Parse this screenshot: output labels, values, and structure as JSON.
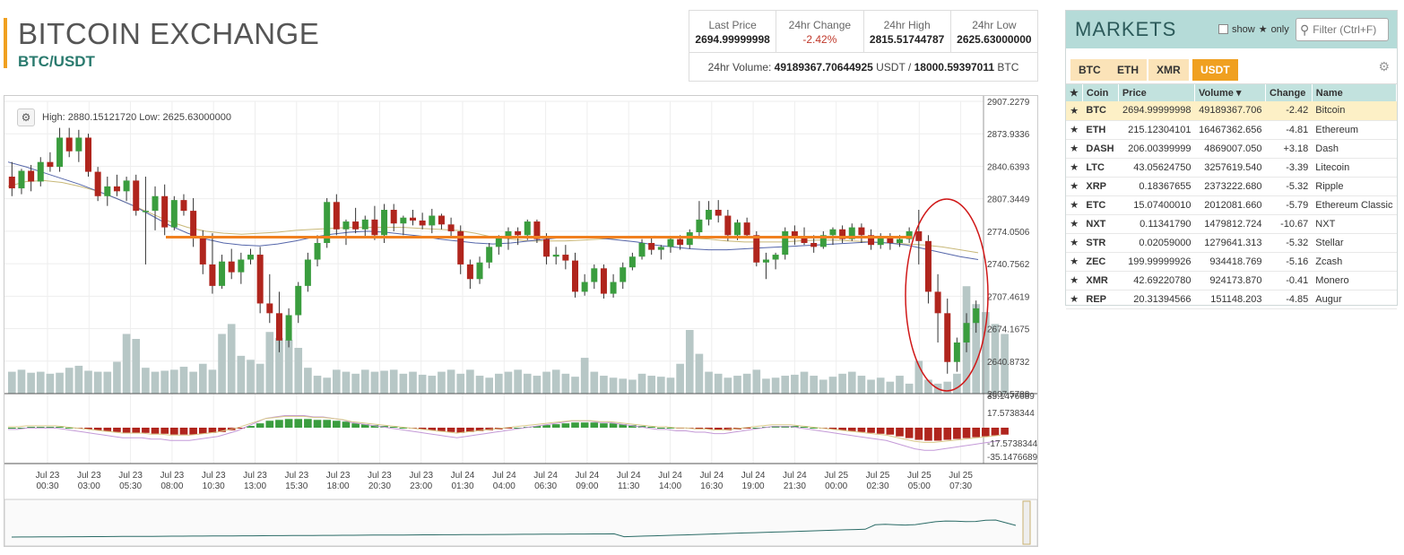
{
  "header": {
    "title": "BITCOIN EXCHANGE",
    "pair": "BTC/USDT"
  },
  "stats": {
    "items": [
      {
        "label": "Last Price",
        "value": "2694.99999998"
      },
      {
        "label": "24hr Change",
        "value": "-2.42%"
      },
      {
        "label": "24hr High",
        "value": "2815.51744787"
      },
      {
        "label": "24hr Low",
        "value": "2625.63000000"
      }
    ],
    "volume_prefix": "24hr Volume:",
    "volume_usdt": "49189367.70644925",
    "volume_sep": "USDT /",
    "volume_btc": "18000.59397011",
    "volume_suffix": "BTC"
  },
  "chart": {
    "high_low_label": "High: 2880.15121720  Low: 2625.63000000",
    "gear_icon": "gear-icon"
  },
  "chart_data": {
    "type": "candlestick",
    "price_ticks": [
      "2907.2279",
      "2873.9336",
      "2840.6393",
      "2807.3449",
      "2774.0506",
      "2740.7562",
      "2707.4619",
      "2674.1675",
      "2640.8732",
      "2607.5788"
    ],
    "indicator_ticks": [
      "35.1476689",
      "17.5738344",
      "-17.5738344",
      "-35.1476689"
    ],
    "x_ticks": [
      [
        "Jul 23",
        "00:30"
      ],
      [
        "Jul 23",
        "03:00"
      ],
      [
        "Jul 23",
        "05:30"
      ],
      [
        "Jul 23",
        "08:00"
      ],
      [
        "Jul 23",
        "10:30"
      ],
      [
        "Jul 23",
        "13:00"
      ],
      [
        "Jul 23",
        "15:30"
      ],
      [
        "Jul 23",
        "18:00"
      ],
      [
        "Jul 23",
        "20:30"
      ],
      [
        "Jul 23",
        "23:00"
      ],
      [
        "Jul 24",
        "01:30"
      ],
      [
        "Jul 24",
        "04:00"
      ],
      [
        "Jul 24",
        "06:30"
      ],
      [
        "Jul 24",
        "09:00"
      ],
      [
        "Jul 24",
        "11:30"
      ],
      [
        "Jul 24",
        "14:00"
      ],
      [
        "Jul 24",
        "16:30"
      ],
      [
        "Jul 24",
        "19:00"
      ],
      [
        "Jul 24",
        "21:30"
      ],
      [
        "Jul 25",
        "00:00"
      ],
      [
        "Jul 25",
        "02:30"
      ],
      [
        "Jul 25",
        "05:00"
      ],
      [
        "Jul 25",
        "07:30"
      ]
    ],
    "ylim": [
      2607.5788,
      2907.2279
    ],
    "candles": [
      [
        2830,
        2845,
        2810,
        2818
      ],
      [
        2818,
        2838,
        2812,
        2836
      ],
      [
        2836,
        2842,
        2815,
        2825
      ],
      [
        2825,
        2850,
        2820,
        2845
      ],
      [
        2845,
        2855,
        2835,
        2840
      ],
      [
        2840,
        2880,
        2835,
        2870
      ],
      [
        2870,
        2880,
        2850,
        2856
      ],
      [
        2856,
        2878,
        2845,
        2870
      ],
      [
        2870,
        2874,
        2830,
        2835
      ],
      [
        2835,
        2840,
        2805,
        2810
      ],
      [
        2810,
        2830,
        2800,
        2820
      ],
      [
        2820,
        2832,
        2810,
        2815
      ],
      [
        2815,
        2830,
        2805,
        2826
      ],
      [
        2826,
        2832,
        2790,
        2795
      ],
      [
        2795,
        2830,
        2740,
        2795
      ],
      [
        2795,
        2820,
        2775,
        2810
      ],
      [
        2810,
        2822,
        2770,
        2778
      ],
      [
        2778,
        2810,
        2775,
        2806
      ],
      [
        2806,
        2812,
        2790,
        2795
      ],
      [
        2795,
        2808,
        2758,
        2768
      ],
      [
        2768,
        2775,
        2730,
        2740
      ],
      [
        2740,
        2772,
        2710,
        2718
      ],
      [
        2718,
        2750,
        2715,
        2743
      ],
      [
        2743,
        2756,
        2725,
        2732
      ],
      [
        2732,
        2752,
        2720,
        2745
      ],
      [
        2745,
        2756,
        2740,
        2750
      ],
      [
        2750,
        2758,
        2690,
        2700
      ],
      [
        2700,
        2730,
        2680,
        2690
      ],
      [
        2690,
        2712,
        2650,
        2662
      ],
      [
        2662,
        2695,
        2655,
        2688
      ],
      [
        2688,
        2722,
        2680,
        2718
      ],
      [
        2718,
        2752,
        2712,
        2745
      ],
      [
        2745,
        2770,
        2738,
        2762
      ],
      [
        2762,
        2808,
        2757,
        2804
      ],
      [
        2804,
        2812,
        2770,
        2776
      ],
      [
        2776,
        2786,
        2760,
        2784
      ],
      [
        2784,
        2798,
        2772,
        2776
      ],
      [
        2776,
        2790,
        2768,
        2786
      ],
      [
        2786,
        2800,
        2765,
        2770
      ],
      [
        2770,
        2802,
        2762,
        2796
      ],
      [
        2796,
        2802,
        2774,
        2782
      ],
      [
        2782,
        2790,
        2770,
        2788
      ],
      [
        2788,
        2796,
        2780,
        2785
      ],
      [
        2785,
        2793,
        2776,
        2780
      ],
      [
        2780,
        2797,
        2772,
        2790
      ],
      [
        2790,
        2792,
        2776,
        2781
      ],
      [
        2781,
        2788,
        2768,
        2774
      ],
      [
        2774,
        2780,
        2730,
        2740
      ],
      [
        2740,
        2745,
        2715,
        2725
      ],
      [
        2725,
        2748,
        2720,
        2742
      ],
      [
        2742,
        2762,
        2736,
        2758
      ],
      [
        2758,
        2770,
        2750,
        2768
      ],
      [
        2768,
        2778,
        2755,
        2774
      ],
      [
        2774,
        2778,
        2760,
        2770
      ],
      [
        2770,
        2786,
        2765,
        2784
      ],
      [
        2784,
        2786,
        2762,
        2766
      ],
      [
        2766,
        2772,
        2740,
        2748
      ],
      [
        2748,
        2758,
        2740,
        2750
      ],
      [
        2750,
        2760,
        2735,
        2744
      ],
      [
        2744,
        2752,
        2706,
        2712
      ],
      [
        2712,
        2730,
        2708,
        2722
      ],
      [
        2722,
        2740,
        2715,
        2736
      ],
      [
        2736,
        2740,
        2705,
        2710
      ],
      [
        2710,
        2730,
        2706,
        2722
      ],
      [
        2722,
        2742,
        2715,
        2737
      ],
      [
        2737,
        2752,
        2734,
        2748
      ],
      [
        2748,
        2766,
        2745,
        2762
      ],
      [
        2762,
        2768,
        2750,
        2755
      ],
      [
        2755,
        2760,
        2745,
        2758
      ],
      [
        2758,
        2768,
        2752,
        2766
      ],
      [
        2766,
        2770,
        2755,
        2760
      ],
      [
        2760,
        2776,
        2756,
        2773
      ],
      [
        2773,
        2805,
        2768,
        2786
      ],
      [
        2786,
        2805,
        2780,
        2796
      ],
      [
        2796,
        2806,
        2783,
        2790
      ],
      [
        2790,
        2796,
        2764,
        2770
      ],
      [
        2770,
        2786,
        2765,
        2783
      ],
      [
        2783,
        2788,
        2767,
        2770
      ],
      [
        2770,
        2774,
        2738,
        2742
      ],
      [
        2742,
        2752,
        2725,
        2745
      ],
      [
        2745,
        2752,
        2735,
        2750
      ],
      [
        2750,
        2778,
        2745,
        2774
      ],
      [
        2774,
        2780,
        2760,
        2768
      ],
      [
        2768,
        2778,
        2760,
        2762
      ],
      [
        2762,
        2770,
        2752,
        2758
      ],
      [
        2758,
        2774,
        2756,
        2770
      ],
      [
        2770,
        2778,
        2760,
        2776
      ],
      [
        2776,
        2780,
        2762,
        2766
      ],
      [
        2766,
        2782,
        2764,
        2778
      ],
      [
        2778,
        2782,
        2762,
        2770
      ],
      [
        2770,
        2776,
        2755,
        2760
      ],
      [
        2760,
        2772,
        2756,
        2768
      ],
      [
        2768,
        2772,
        2755,
        2762
      ],
      [
        2762,
        2770,
        2758,
        2766
      ],
      [
        2766,
        2778,
        2762,
        2774
      ],
      [
        2774,
        2796,
        2740,
        2764
      ],
      [
        2764,
        2770,
        2700,
        2712
      ],
      [
        2712,
        2730,
        2660,
        2690
      ],
      [
        2690,
        2705,
        2628,
        2640
      ],
      [
        2640,
        2665,
        2630,
        2660
      ],
      [
        2660,
        2690,
        2650,
        2680
      ],
      [
        2680,
        2703,
        2670,
        2695
      ]
    ],
    "volumes": [
      22,
      24,
      21,
      22,
      20,
      21,
      26,
      28,
      23,
      22,
      22,
      32,
      60,
      55,
      26,
      22,
      23,
      24,
      27,
      22,
      30,
      24,
      60,
      70,
      38,
      34,
      30,
      62,
      56,
      54,
      46,
      26,
      18,
      16,
      24,
      22,
      20,
      24,
      22,
      23,
      24,
      20,
      22,
      19,
      18,
      22,
      24,
      20,
      24,
      18,
      16,
      20,
      22,
      24,
      20,
      18,
      22,
      24,
      20,
      17,
      36,
      22,
      18,
      16,
      15,
      14,
      20,
      18,
      17,
      16,
      30,
      64,
      40,
      22,
      20,
      16,
      18,
      20,
      24,
      15,
      16,
      18,
      19,
      22,
      18,
      14,
      17,
      20,
      22,
      18,
      14,
      16,
      12,
      18,
      10,
      33,
      14,
      10,
      12,
      20,
      108,
      90,
      82,
      70,
      60
    ],
    "sma_fast": [
      2845,
      2840,
      2834,
      2828,
      2822,
      2815,
      2808,
      2800,
      2790,
      2780,
      2772,
      2766,
      2762,
      2760,
      2759,
      2761,
      2764,
      2768,
      2771,
      2773,
      2774,
      2773,
      2771,
      2769,
      2766,
      2764,
      2762,
      2761,
      2762,
      2764,
      2766,
      2768,
      2768,
      2767,
      2765,
      2763,
      2760,
      2758,
      2756,
      2755,
      2755,
      2756,
      2757,
      2758,
      2759,
      2760,
      2761,
      2762,
      2763,
      2762,
      2760,
      2756,
      2752,
      2748,
      2745
    ],
    "sma_slow": [
      2820,
      2825,
      2826,
      2824,
      2820,
      2815,
      2808,
      2800,
      2792,
      2784,
      2778,
      2774,
      2772,
      2771,
      2772,
      2773,
      2775,
      2776,
      2777,
      2778,
      2778,
      2778,
      2778,
      2777,
      2776,
      2775,
      2772,
      2768,
      2766,
      2764,
      2764,
      2764,
      2765,
      2766,
      2767,
      2768,
      2769,
      2768,
      2767,
      2766,
      2764,
      2763,
      2763,
      2763,
      2764,
      2765,
      2765,
      2764,
      2763,
      2762,
      2761,
      2760,
      2758,
      2755,
      2752
    ],
    "macd_hist": [
      0,
      0,
      1,
      1,
      1,
      1,
      0,
      -1,
      -2,
      -3,
      -4,
      -5,
      -6,
      -6,
      -6,
      -7,
      -7,
      -8,
      -8,
      -8,
      -7,
      -6,
      -5,
      -3,
      -1,
      2,
      5,
      8,
      9,
      10,
      10,
      10,
      9,
      9,
      8,
      7,
      5,
      4,
      3,
      2,
      1,
      0,
      -1,
      -2,
      -3,
      -4,
      -5,
      -6,
      -5,
      -4,
      -3,
      -2,
      -1,
      0,
      1,
      2,
      3,
      4,
      5,
      6,
      6,
      6,
      5,
      5,
      4,
      3,
      2,
      1,
      0,
      0,
      -1,
      -1,
      -2,
      -2,
      -3,
      -3,
      -2,
      -1,
      0,
      1,
      2,
      2,
      2,
      1,
      0,
      -1,
      -2,
      -3,
      -4,
      -5,
      -6,
      -7,
      -8,
      -10,
      -12,
      -14,
      -15,
      -15,
      -14,
      -13,
      -12,
      -11,
      -10,
      -9,
      -8
    ],
    "resistance": 2768,
    "annotation": "circle"
  },
  "markets": {
    "title": "MARKETS",
    "show_label": "show",
    "only_label": "only",
    "filter_placeholder": "Filter (Ctrl+F)",
    "tabs": [
      "BTC",
      "ETH",
      "XMR",
      "USDT"
    ],
    "active_tab": "USDT",
    "columns": [
      "Coin",
      "Price",
      "Volume ▾",
      "Change",
      "Name"
    ],
    "rows": [
      {
        "coin": "BTC",
        "price": "2694.99999998",
        "volume": "49189367.706",
        "change": "-2.42",
        "name": "Bitcoin",
        "selected": true
      },
      {
        "coin": "ETH",
        "price": "215.12304101",
        "volume": "16467362.656",
        "change": "-4.81",
        "name": "Ethereum"
      },
      {
        "coin": "DASH",
        "price": "206.00399999",
        "volume": "4869007.050",
        "change": "+3.18",
        "name": "Dash"
      },
      {
        "coin": "LTC",
        "price": "43.05624750",
        "volume": "3257619.540",
        "change": "-3.39",
        "name": "Litecoin"
      },
      {
        "coin": "XRP",
        "price": "0.18367655",
        "volume": "2373222.680",
        "change": "-5.32",
        "name": "Ripple"
      },
      {
        "coin": "ETC",
        "price": "15.07400010",
        "volume": "2012081.660",
        "change": "-5.79",
        "name": "Ethereum Classic"
      },
      {
        "coin": "NXT",
        "price": "0.11341790",
        "volume": "1479812.724",
        "change": "-10.67",
        "name": "NXT"
      },
      {
        "coin": "STR",
        "price": "0.02059000",
        "volume": "1279641.313",
        "change": "-5.32",
        "name": "Stellar"
      },
      {
        "coin": "ZEC",
        "price": "199.99999926",
        "volume": "934418.769",
        "change": "-5.16",
        "name": "Zcash"
      },
      {
        "coin": "XMR",
        "price": "42.69220780",
        "volume": "924173.870",
        "change": "-0.41",
        "name": "Monero"
      },
      {
        "coin": "REP",
        "price": "20.31394566",
        "volume": "151148.203",
        "change": "-4.85",
        "name": "Augur"
      }
    ]
  },
  "colors": {
    "up": "#3a9d3e",
    "down": "#b0251d",
    "volume": "#b7c7c6",
    "accent": "#f0a020",
    "sma_fast": "#5566aa",
    "sma_slow": "#c8b878",
    "resistance": "#f08020",
    "circle": "#d01818"
  }
}
